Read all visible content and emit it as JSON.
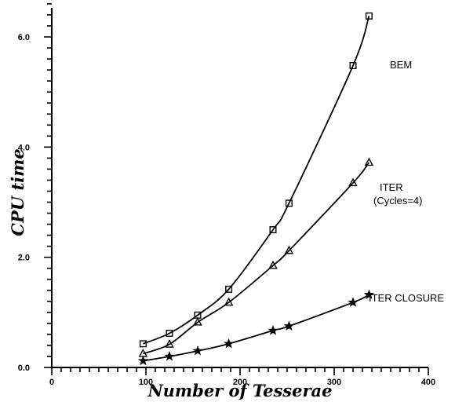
{
  "chart_data": {
    "type": "line",
    "title": "",
    "xlabel": "Number of Tesserae",
    "ylabel": "CPU time",
    "xlim": [
      0,
      400
    ],
    "ylim": [
      0,
      6.8
    ],
    "x_ticks": [
      0,
      100,
      200,
      300,
      400
    ],
    "x_tick_labels": [
      "0",
      "100",
      "200",
      "300",
      "400"
    ],
    "y_ticks": [
      0,
      2,
      4,
      6
    ],
    "y_tick_labels": [
      "0.0",
      "2.0",
      "4.0",
      "6.0"
    ],
    "grid": false,
    "legend": "none",
    "series": [
      {
        "name": "BEM",
        "marker": "square",
        "x": [
          97,
          125,
          155,
          188,
          235,
          252,
          320,
          337
        ],
        "y": [
          0.43,
          0.62,
          0.95,
          1.42,
          2.5,
          2.98,
          5.48,
          6.38
        ]
      },
      {
        "name": "ITER (Cycles=4)",
        "marker": "triangle",
        "x": [
          97,
          125,
          155,
          188,
          235,
          252,
          320,
          337
        ],
        "y": [
          0.25,
          0.42,
          0.82,
          1.18,
          1.85,
          2.12,
          3.35,
          3.72
        ]
      },
      {
        "name": "ITER CLOSURE",
        "marker": "star",
        "x": [
          97,
          125,
          155,
          188,
          235,
          252,
          320,
          337
        ],
        "y": [
          0.12,
          0.2,
          0.3,
          0.43,
          0.67,
          0.75,
          1.18,
          1.32
        ]
      }
    ],
    "annotations": [
      {
        "series": 0,
        "lines": [
          "BEM"
        ]
      },
      {
        "series": 1,
        "lines": [
          "ITER",
          "(Cycles=4)"
        ]
      },
      {
        "series": 2,
        "lines": [
          "ITER CLOSURE"
        ]
      }
    ]
  }
}
